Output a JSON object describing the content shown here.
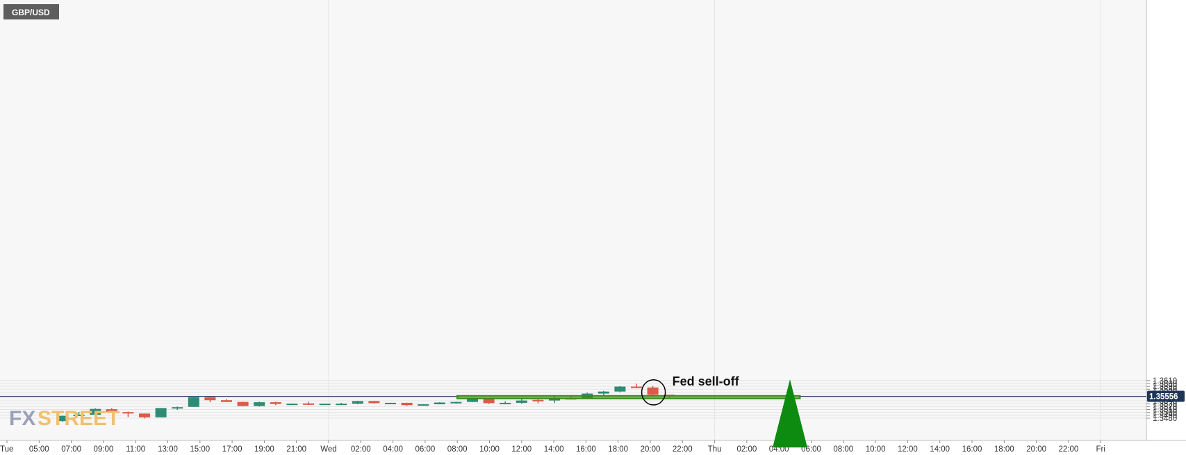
{
  "symbol": "GBP/USD",
  "watermark": {
    "fx": "FX",
    "street": "STREET"
  },
  "annotation": "Fed sell-off",
  "price_marker": "1.35556",
  "colors": {
    "bull": "#2e8b74",
    "bear": "#db5a49",
    "zone": "#3b8a1a",
    "arrow": "#0d8a10",
    "marker_bg": "#1f3557",
    "grid": "#e4e4e4",
    "price_line": "#1f3557",
    "watermark_fx": "#9aa0b8",
    "watermark_street": "#f0c070"
  },
  "chart_data": {
    "type": "candlestick",
    "title": "GBP/USD",
    "ylim": [
      1.3477,
      1.3617
    ],
    "y_ticks": [
      "1.3480",
      "1.3490",
      "1.3500",
      "1.3510",
      "1.3520",
      "1.3530",
      "1.3540",
      "1.3550",
      "1.3560",
      "1.3570",
      "1.3580",
      "1.3590",
      "1.3600",
      "1.3610"
    ],
    "x_ticks": [
      "Tue",
      "05:00",
      "07:00",
      "09:00",
      "11:00",
      "13:00",
      "15:00",
      "17:00",
      "19:00",
      "21:00",
      "Wed",
      "02:00",
      "04:00",
      "06:00",
      "08:00",
      "10:00",
      "12:00",
      "14:00",
      "16:00",
      "18:00",
      "20:00",
      "22:00",
      "Thu",
      "02:00",
      "04:00",
      "06:00",
      "08:00",
      "10:00",
      "12:00",
      "14:00",
      "16:00",
      "18:00",
      "20:00",
      "22:00",
      "Fri"
    ],
    "candles": [
      {
        "o": 1.347,
        "h": 1.3489,
        "l": 1.3468,
        "c": 1.3488
      },
      {
        "o": 1.3488,
        "h": 1.3502,
        "l": 1.3488,
        "c": 1.3492
      },
      {
        "o": 1.3492,
        "h": 1.3514,
        "l": 1.3488,
        "c": 1.3512
      },
      {
        "o": 1.3511,
        "h": 1.3515,
        "l": 1.3501,
        "c": 1.3501
      },
      {
        "o": 1.3501,
        "h": 1.3503,
        "l": 1.3484,
        "c": 1.3496
      },
      {
        "o": 1.3496,
        "h": 1.3496,
        "l": 1.3479,
        "c": 1.3483
      },
      {
        "o": 1.3483,
        "h": 1.3515,
        "l": 1.3483,
        "c": 1.3515
      },
      {
        "o": 1.3515,
        "h": 1.352,
        "l": 1.3509,
        "c": 1.3518
      },
      {
        "o": 1.3519,
        "h": 1.3557,
        "l": 1.3519,
        "c": 1.3553
      },
      {
        "o": 1.3553,
        "h": 1.3554,
        "l": 1.3535,
        "c": 1.3542
      },
      {
        "o": 1.3542,
        "h": 1.3546,
        "l": 1.3535,
        "c": 1.3536
      },
      {
        "o": 1.3536,
        "h": 1.3537,
        "l": 1.3521,
        "c": 1.3522
      },
      {
        "o": 1.3522,
        "h": 1.3537,
        "l": 1.352,
        "c": 1.3535
      },
      {
        "o": 1.3535,
        "h": 1.3537,
        "l": 1.3525,
        "c": 1.3529
      },
      {
        "o": 1.3529,
        "h": 1.3531,
        "l": 1.3527,
        "c": 1.353
      },
      {
        "o": 1.3531,
        "h": 1.3537,
        "l": 1.3525,
        "c": 1.3526
      },
      {
        "o": 1.3526,
        "h": 1.353,
        "l": 1.3526,
        "c": 1.353
      },
      {
        "o": 1.353,
        "h": 1.3533,
        "l": 1.3527,
        "c": 1.353
      },
      {
        "o": 1.353,
        "h": 1.354,
        "l": 1.3528,
        "c": 1.3539
      },
      {
        "o": 1.3539,
        "h": 1.354,
        "l": 1.3531,
        "c": 1.3532
      },
      {
        "o": 1.3532,
        "h": 1.3533,
        "l": 1.3529,
        "c": 1.3533
      },
      {
        "o": 1.3533,
        "h": 1.3533,
        "l": 1.3522,
        "c": 1.3525
      },
      {
        "o": 1.3525,
        "h": 1.3528,
        "l": 1.3523,
        "c": 1.3528
      },
      {
        "o": 1.3528,
        "h": 1.3535,
        "l": 1.3528,
        "c": 1.3534
      },
      {
        "o": 1.3534,
        "h": 1.3537,
        "l": 1.353,
        "c": 1.3536
      },
      {
        "o": 1.3536,
        "h": 1.355,
        "l": 1.3535,
        "c": 1.3547
      },
      {
        "o": 1.3547,
        "h": 1.3548,
        "l": 1.3529,
        "c": 1.3532
      },
      {
        "o": 1.3532,
        "h": 1.3538,
        "l": 1.3528,
        "c": 1.3533
      },
      {
        "o": 1.3533,
        "h": 1.3549,
        "l": 1.353,
        "c": 1.3541
      },
      {
        "o": 1.3543,
        "h": 1.3548,
        "l": 1.3532,
        "c": 1.3541
      },
      {
        "o": 1.3541,
        "h": 1.3557,
        "l": 1.3533,
        "c": 1.3549
      },
      {
        "o": 1.3549,
        "h": 1.356,
        "l": 1.3546,
        "c": 1.3547
      },
      {
        "o": 1.3547,
        "h": 1.3568,
        "l": 1.3546,
        "c": 1.3565
      },
      {
        "o": 1.3565,
        "h": 1.3574,
        "l": 1.3557,
        "c": 1.3572
      },
      {
        "o": 1.3572,
        "h": 1.3591,
        "l": 1.3569,
        "c": 1.3589
      },
      {
        "o": 1.3589,
        "h": 1.3599,
        "l": 1.3584,
        "c": 1.3586
      },
      {
        "o": 1.3586,
        "h": 1.3591,
        "l": 1.3557,
        "c": 1.3561
      },
      {
        "o": 1.3561,
        "h": 1.3561,
        "l": 1.355,
        "c": 1.3556
      }
    ],
    "support_zone": {
      "top": 1.35565,
      "bottom": 1.35485,
      "from": "08:00 Wed",
      "to": "04:00 Thu"
    },
    "arrow": {
      "from": 1.3549,
      "to": 1.3614
    },
    "last_price": 1.35556
  }
}
